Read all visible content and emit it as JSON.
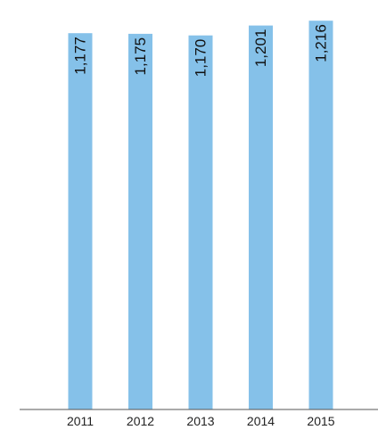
{
  "chart_data": {
    "type": "bar",
    "categories": [
      "2011",
      "2012",
      "2013",
      "2014",
      "2015"
    ],
    "values": [
      1177,
      1175,
      1170,
      1201,
      1216
    ],
    "value_labels": [
      "1,177",
      "1,175",
      "1,170",
      "1,201",
      "1,216"
    ],
    "title": "",
    "xlabel": "",
    "ylabel": "",
    "ylim": [
      0,
      1250
    ],
    "grid": false,
    "legend": "none",
    "colors": {
      "bar": "#85c1e9",
      "axis": "#555555",
      "text": "#111111"
    }
  }
}
